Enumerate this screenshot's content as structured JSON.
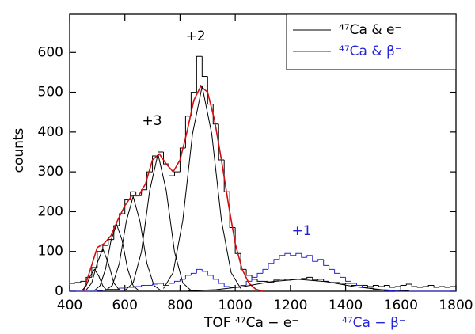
{
  "chart_data": {
    "type": "histogram",
    "ylabel": "counts",
    "xlabel_parts": [
      {
        "text": "TOF ⁴⁷Ca − e⁻",
        "color": "#000000"
      },
      {
        "text": "⁴⁷Ca − β⁻",
        "color": "#2323d8"
      }
    ],
    "xlim": [
      400,
      1800
    ],
    "ylim": [
      0,
      696
    ],
    "xticks": [
      400,
      600,
      800,
      1000,
      1200,
      1400,
      1600,
      1800
    ],
    "yticks": [
      0,
      100,
      200,
      300,
      400,
      500,
      600
    ],
    "legend": "upper right",
    "bins": [
      400,
      420,
      440,
      460,
      480,
      500,
      520,
      540,
      560,
      580,
      600,
      620,
      640,
      660,
      680,
      700,
      720,
      740,
      760,
      780,
      800,
      820,
      840,
      860,
      880,
      900,
      920,
      940,
      960,
      980,
      1000,
      1020,
      1040,
      1060,
      1080,
      1100,
      1120,
      1140,
      1160,
      1180,
      1200,
      1220,
      1240,
      1260,
      1280,
      1300,
      1320,
      1340,
      1360,
      1380,
      1400,
      1420,
      1440,
      1460,
      1480,
      1500,
      1520,
      1540,
      1560,
      1580,
      1600,
      1620,
      1640,
      1660,
      1680,
      1700,
      1720,
      1740,
      1760,
      1780,
      1800
    ],
    "series": [
      {
        "name": "⁴⁷Ca & e⁻",
        "color": "#000000",
        "values": [
          20,
          22,
          25,
          35,
          60,
          100,
          115,
          130,
          165,
          195,
          230,
          250,
          240,
          255,
          300,
          340,
          350,
          320,
          290,
          300,
          360,
          440,
          500,
          590,
          540,
          470,
          420,
          330,
          250,
          160,
          95,
          55,
          40,
          30,
          25,
          25,
          22,
          28,
          30,
          28,
          30,
          30,
          32,
          35,
          28,
          30,
          25,
          22,
          22,
          18,
          20,
          15,
          15,
          15,
          12,
          15,
          12,
          15,
          10,
          12,
          15,
          18,
          12,
          10,
          12,
          15,
          10,
          12,
          10,
          12
        ]
      },
      {
        "name": "⁴⁷Ca & β⁻",
        "color": "#2323d8",
        "values": [
          0,
          0,
          0,
          0,
          0,
          2,
          3,
          5,
          5,
          8,
          10,
          10,
          12,
          15,
          15,
          18,
          20,
          15,
          20,
          25,
          30,
          40,
          45,
          55,
          50,
          40,
          30,
          20,
          12,
          10,
          10,
          15,
          25,
          35,
          45,
          55,
          70,
          80,
          90,
          95,
          90,
          95,
          85,
          90,
          75,
          80,
          65,
          55,
          45,
          35,
          25,
          20,
          15,
          10,
          8,
          5,
          3,
          2,
          1,
          0,
          0,
          0,
          0,
          0,
          0,
          0,
          0,
          0,
          0,
          0
        ]
      }
    ],
    "curves": [
      {
        "color": "#d01010",
        "x": [
          450,
          475,
          500,
          525,
          550,
          575,
          600,
          625,
          650,
          675,
          700,
          725,
          750,
          775,
          800,
          825,
          850,
          875,
          900,
          925,
          950,
          975,
          1000,
          1025,
          1050,
          1075,
          1100
        ],
        "values": [
          0,
          55,
          110,
          120,
          140,
          180,
          215,
          240,
          240,
          270,
          330,
          345,
          320,
          300,
          330,
          400,
          480,
          515,
          500,
          430,
          330,
          220,
          120,
          55,
          20,
          5,
          0
        ]
      },
      {
        "color": "#000000",
        "x": [
          445,
          460,
          475,
          490,
          505,
          520,
          535
        ],
        "values": [
          2,
          14,
          39,
          55,
          39,
          14,
          2
        ]
      },
      {
        "color": "#000000",
        "x": [
          460,
          480,
          500,
          520,
          540,
          560,
          580
        ],
        "values": [
          3,
          21,
          71,
          107,
          71,
          21,
          3
        ]
      },
      {
        "color": "#000000",
        "x": [
          490,
          510,
          530,
          550,
          570,
          590,
          610,
          630,
          650
        ],
        "values": [
          2,
          14,
          56,
          128,
          168,
          128,
          56,
          14,
          2
        ]
      },
      {
        "color": "#000000",
        "x": [
          530,
          555,
          580,
          605,
          630,
          655,
          680,
          705,
          730
        ],
        "values": [
          2,
          15,
          70,
          175,
          238,
          175,
          70,
          15,
          2
        ]
      },
      {
        "color": "#000000",
        "x": [
          600,
          630,
          660,
          690,
          720,
          750,
          780,
          810,
          840
        ],
        "values": [
          2,
          21,
          99,
          253,
          345,
          253,
          99,
          21,
          2
        ]
      },
      {
        "color": "#000000",
        "x": [
          740,
          775,
          810,
          845,
          880,
          915,
          950,
          985,
          1020
        ],
        "values": [
          7,
          47,
          178,
          395,
          515,
          395,
          178,
          47,
          7
        ]
      },
      {
        "color": "#000000",
        "x": [
          830,
          930,
          1030,
          1130,
          1230,
          1330,
          1430,
          1530,
          1630
        ],
        "values": [
          1,
          4,
          12,
          24,
          30,
          24,
          12,
          4,
          1
        ]
      }
    ],
    "annotations": [
      {
        "text": "+3",
        "color": "#000000"
      },
      {
        "text": "+2",
        "color": "#000000"
      },
      {
        "text": "+1",
        "color": "#2323d8"
      }
    ]
  }
}
